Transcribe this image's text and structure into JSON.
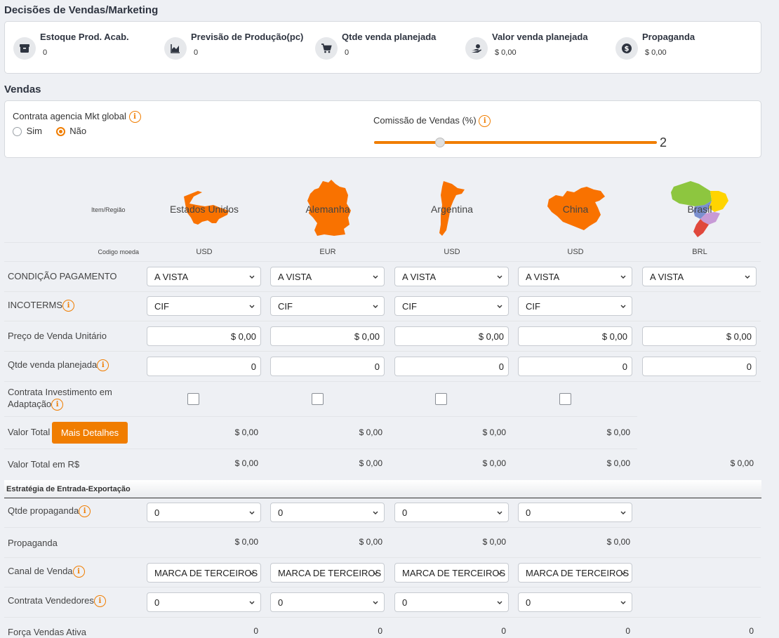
{
  "sales_marketing": {
    "title": "Decisões de Vendas/Marketing",
    "summary": [
      {
        "label": "Estoque Prod. Acab.",
        "value": "0",
        "icon": "box-icon"
      },
      {
        "label": "Previsão de Produção(pc)",
        "value": "0",
        "icon": "area-chart-icon"
      },
      {
        "label": "Qtde venda planejada",
        "value": "0",
        "icon": "cart-icon"
      },
      {
        "label": "Valor venda planejada",
        "value": "$ 0,00",
        "icon": "hand-money-icon"
      },
      {
        "label": "Propaganda",
        "value": "$ 0,00",
        "icon": "dollar-coin-icon"
      }
    ]
  },
  "sales": {
    "title": "Vendas",
    "global_agency": {
      "label": "Contrata agencia Mkt global",
      "option_yes": "Sim",
      "option_no": "Não",
      "selected": "Não"
    },
    "commission": {
      "label": "Comissão de Vendas (%)",
      "value": "2"
    }
  },
  "table": {
    "header_item_region": "Item/Região",
    "header_currency_code": "Codigo moeda",
    "countries": [
      {
        "name": "Estados Unidos",
        "currency": "USD"
      },
      {
        "name": "Alemanha",
        "currency": "EUR"
      },
      {
        "name": "Argentina",
        "currency": "USD"
      },
      {
        "name": "China",
        "currency": "USD"
      },
      {
        "name": "Brasil",
        "currency": "BRL"
      }
    ],
    "rows": {
      "payment_condition": {
        "label": "CONDIÇÃO PAGAMENTO",
        "values": [
          "A VISTA",
          "A VISTA",
          "A VISTA",
          "A VISTA",
          "A VISTA"
        ]
      },
      "incoterms": {
        "label": "INCOTERMS",
        "values": [
          "CIF",
          "CIF",
          "CIF",
          "CIF"
        ]
      },
      "unit_price": {
        "label": "Preço de Venda Unitário",
        "values": [
          "$ 0,00",
          "$ 0,00",
          "$ 0,00",
          "$ 0,00",
          "$ 0,00"
        ]
      },
      "planned_qty": {
        "label": "Qtde venda planejada",
        "values": [
          "0",
          "0",
          "0",
          "0",
          "0"
        ]
      },
      "adaptation": {
        "label_line1": "Contrata Investimento em",
        "label_line2": "Adaptação"
      },
      "total_value": {
        "label": "Valor Total",
        "button": "Mais Detalhes",
        "values": [
          "$ 0,00",
          "$ 0,00",
          "$ 0,00",
          "$ 0,00"
        ]
      },
      "total_value_brl": {
        "label": "Valor Total em R$",
        "values": [
          "$ 0,00",
          "$ 0,00",
          "$ 0,00",
          "$ 0,00",
          "$ 0,00"
        ]
      }
    },
    "export_strategy": {
      "title": "Estratégia de Entrada-Exportação",
      "advertising_qty": {
        "label": "Qtde propaganda",
        "values": [
          "0",
          "0",
          "0",
          "0"
        ]
      },
      "advertising": {
        "label": "Propaganda",
        "values": [
          "$ 0,00",
          "$ 0,00",
          "$ 0,00",
          "$ 0,00"
        ]
      },
      "sales_channel": {
        "label": "Canal de Venda",
        "values": [
          "MARCA DE TERCEIROS",
          "MARCA DE TERCEIROS",
          "MARCA DE TERCEIROS",
          "MARCA DE TERCEIROS"
        ]
      },
      "hire_sellers": {
        "label": "Contrata Vendedores",
        "values": [
          "0",
          "0",
          "0",
          "0"
        ]
      },
      "active_sales_force": {
        "label": "Força Vendas Ativa",
        "values": [
          "0",
          "0",
          "0",
          "0",
          "0"
        ]
      }
    }
  },
  "colors": {
    "accent": "#f07d00",
    "background": "#eef0f4",
    "card": "#ffffff"
  }
}
